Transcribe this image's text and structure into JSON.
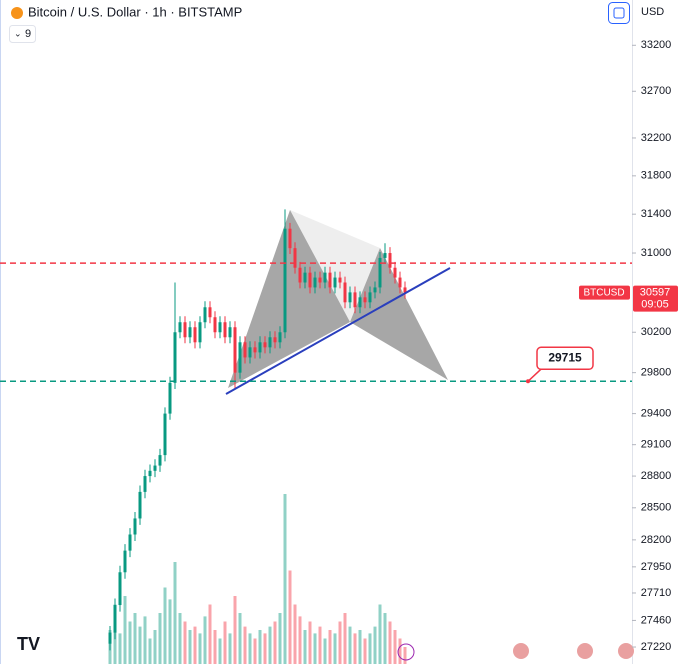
{
  "header": {
    "title": "Bitcoin / U.S. Dollar · 1h · BITSTAMP",
    "indicators": "9",
    "currency": "USD"
  },
  "chart_data": {
    "type": "candlestick",
    "log_scale": true,
    "ylim": [
      27068,
      33700
    ],
    "yticks": [
      33200,
      32700,
      32200,
      31800,
      31400,
      31000,
      30200,
      29800,
      29400,
      29100,
      28800,
      28500,
      28200,
      27950,
      27710,
      27460,
      27220
    ],
    "up_color": "#089981",
    "down_color": "#f23645",
    "open": [
      27250,
      27350,
      27600,
      27900,
      28100,
      28250,
      28400,
      28650,
      28800,
      28850,
      28900,
      29000,
      29400,
      29700,
      30200,
      30300,
      30150,
      30250,
      30100,
      30300,
      30450,
      30350,
      30200,
      30300,
      30150,
      30250,
      29800,
      30100,
      29950,
      30050,
      30000,
      30100,
      30050,
      30150,
      30100,
      30200,
      31250,
      31050,
      30850,
      30700,
      30800,
      30650,
      30750,
      30700,
      30800,
      30650,
      30750,
      30700,
      30500,
      30600,
      30450,
      30550,
      30500,
      30600,
      30650,
      30950,
      31000,
      30850,
      30750,
      30650
    ],
    "high": [
      27410,
      27660,
      27960,
      28160,
      28310,
      28460,
      28710,
      28860,
      28910,
      28960,
      29060,
      29460,
      29760,
      30700,
      30360,
      30360,
      30310,
      30310,
      30360,
      30510,
      30510,
      30410,
      30360,
      30360,
      30310,
      30310,
      30160,
      30160,
      30110,
      30110,
      30160,
      30160,
      30210,
      30210,
      30260,
      31450,
      31310,
      31110,
      30910,
      30860,
      30860,
      30810,
      30810,
      30860,
      30860,
      30810,
      30810,
      30760,
      30660,
      30660,
      30610,
      30610,
      30660,
      30710,
      31010,
      31100,
      31060,
      30910,
      30810,
      30710
    ],
    "low": [
      27190,
      27290,
      27540,
      27840,
      28040,
      28190,
      28340,
      28590,
      28740,
      28790,
      28840,
      28940,
      29340,
      29640,
      30140,
      30090,
      30090,
      30040,
      30040,
      30240,
      30290,
      30140,
      30140,
      30090,
      30090,
      29650,
      29740,
      29890,
      29890,
      29940,
      29940,
      29990,
      29990,
      30040,
      30040,
      30140,
      30990,
      30790,
      30640,
      30640,
      30590,
      30590,
      30640,
      30640,
      30590,
      30590,
      30640,
      30440,
      30440,
      30390,
      30390,
      30440,
      30440,
      30540,
      30590,
      30890,
      30790,
      30690,
      30590,
      30537
    ],
    "close": [
      27350,
      27600,
      27900,
      28100,
      28250,
      28400,
      28650,
      28800,
      28850,
      28900,
      29000,
      29400,
      29700,
      30200,
      30300,
      30150,
      30250,
      30100,
      30300,
      30450,
      30350,
      30200,
      30300,
      30150,
      30250,
      29800,
      30100,
      29950,
      30050,
      30000,
      30100,
      30050,
      30150,
      30100,
      30200,
      31250,
      31050,
      30850,
      30700,
      30800,
      30650,
      30750,
      30700,
      30800,
      30650,
      30750,
      30700,
      30500,
      30600,
      30450,
      30550,
      30500,
      30600,
      30650,
      30950,
      31000,
      30850,
      30750,
      30650,
      30597
    ],
    "volume": [
      20,
      35,
      18,
      40,
      25,
      30,
      22,
      28,
      15,
      20,
      30,
      45,
      38,
      60,
      30,
      25,
      20,
      22,
      18,
      28,
      35,
      20,
      15,
      25,
      18,
      40,
      30,
      22,
      18,
      15,
      20,
      18,
      22,
      25,
      30,
      100,
      55,
      35,
      28,
      20,
      25,
      18,
      22,
      15,
      20,
      18,
      25,
      30,
      22,
      18,
      20,
      15,
      18,
      22,
      35,
      30,
      25,
      20,
      15,
      10
    ],
    "symbol": "BTCUSD",
    "countdown": "09:05",
    "lines": [
      {
        "value": 30897,
        "color": "#f23645"
      },
      {
        "value": 29715,
        "color": "#089981"
      }
    ]
  }
}
